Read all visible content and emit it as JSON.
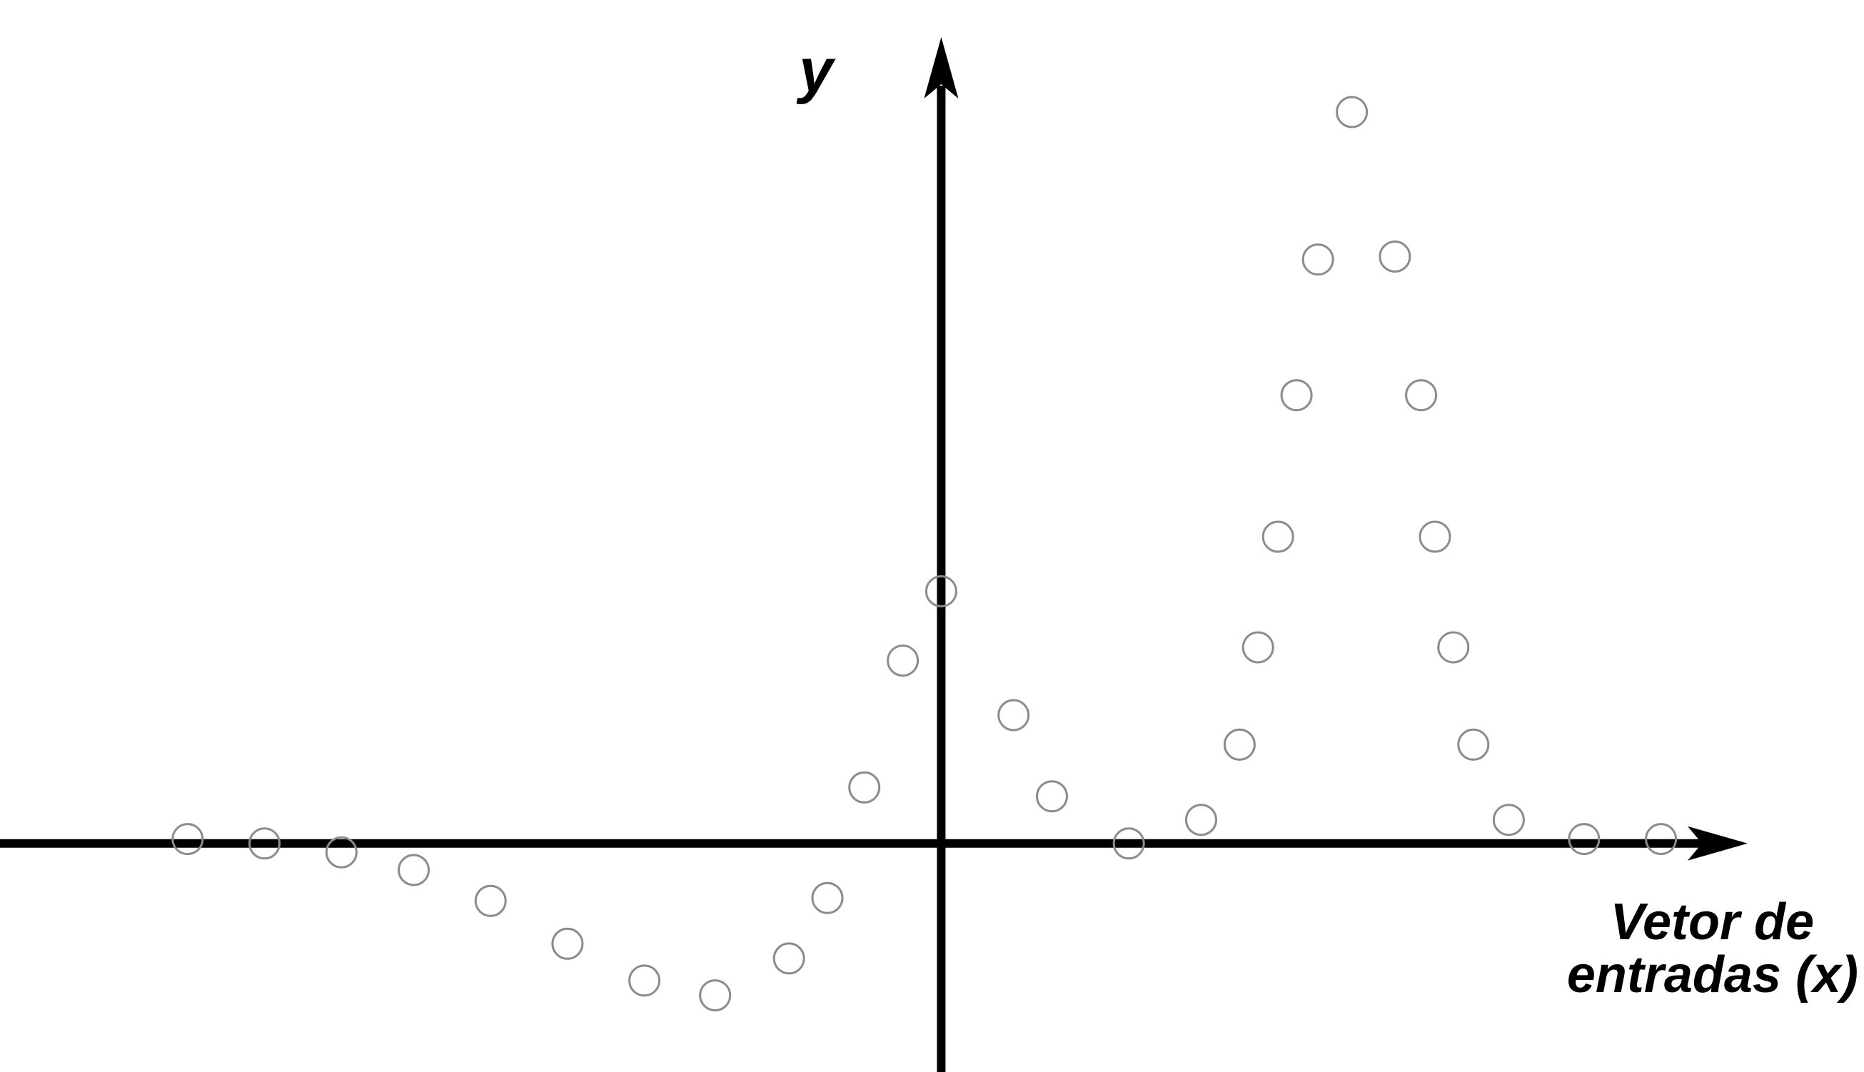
{
  "chart_data": {
    "type": "scatter",
    "title": "",
    "ylabel": "y",
    "xlabel_line1": "Vetor de",
    "xlabel_line2_text": "entradas (",
    "xlabel_line2_var": "x",
    "xlabel_line2_close": ")",
    "xlim": [
      -6.12,
      6.0
    ],
    "ylim": [
      -1.55,
      5.72
    ],
    "grid": false,
    "legend": "none",
    "axis_color": "#000000",
    "point_color": "#8c8c8c",
    "series": [
      {
        "points": [
          {
            "x": -4.9,
            "y": 0.03
          },
          {
            "x": -4.4,
            "y": 0.0
          },
          {
            "x": -3.9,
            "y": -0.06
          },
          {
            "x": -3.43,
            "y": -0.18
          },
          {
            "x": -2.93,
            "y": -0.39
          },
          {
            "x": -2.43,
            "y": -0.68
          },
          {
            "x": -1.93,
            "y": -0.93
          },
          {
            "x": -1.47,
            "y": -1.03
          },
          {
            "x": -0.99,
            "y": -0.78
          },
          {
            "x": -0.74,
            "y": -0.37
          },
          {
            "x": -0.5,
            "y": 0.38
          },
          {
            "x": -0.25,
            "y": 1.24
          },
          {
            "x": 0.0,
            "y": 1.71
          },
          {
            "x": 0.47,
            "y": 0.87
          },
          {
            "x": 0.72,
            "y": 0.32
          },
          {
            "x": 1.22,
            "y": 0.0
          },
          {
            "x": 1.69,
            "y": 0.16
          },
          {
            "x": 1.94,
            "y": 0.67
          },
          {
            "x": 2.06,
            "y": 1.33
          },
          {
            "x": 2.19,
            "y": 2.08
          },
          {
            "x": 2.31,
            "y": 3.04
          },
          {
            "x": 2.45,
            "y": 3.96
          },
          {
            "x": 2.67,
            "y": 4.96
          },
          {
            "x": 2.95,
            "y": 3.98
          },
          {
            "x": 3.12,
            "y": 3.04
          },
          {
            "x": 3.21,
            "y": 2.08
          },
          {
            "x": 3.33,
            "y": 1.33
          },
          {
            "x": 3.46,
            "y": 0.67
          },
          {
            "x": 3.69,
            "y": 0.16
          },
          {
            "x": 4.18,
            "y": 0.03
          },
          {
            "x": 4.68,
            "y": 0.03
          }
        ]
      }
    ]
  }
}
